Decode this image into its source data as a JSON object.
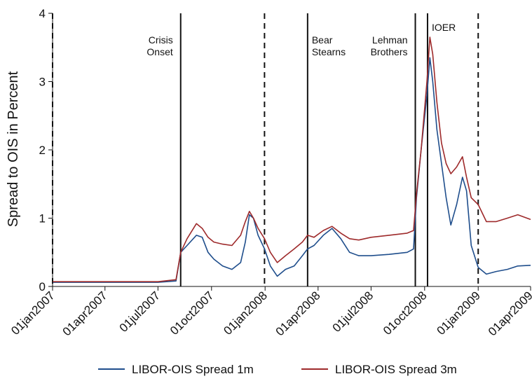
{
  "chart_data": {
    "type": "line",
    "title": "",
    "xlabel": "",
    "ylabel": "Spread to OIS in Percent",
    "ylim": [
      0,
      4
    ],
    "xlim": [
      "2007-01-01",
      "2009-04-01"
    ],
    "y_ticks": [
      "0",
      "1",
      "2",
      "3",
      "4"
    ],
    "x_ticks": [
      {
        "date": "2007-01-01",
        "label": "01jan2007"
      },
      {
        "date": "2007-04-01",
        "label": "01apr2007"
      },
      {
        "date": "2007-07-01",
        "label": "01jul2007"
      },
      {
        "date": "2007-10-01",
        "label": "01oct2007"
      },
      {
        "date": "2008-01-01",
        "label": "01jan2008"
      },
      {
        "date": "2008-04-01",
        "label": "01apr2008"
      },
      {
        "date": "2008-07-01",
        "label": "01jul2008"
      },
      {
        "date": "2008-10-01",
        "label": "01oct2008"
      },
      {
        "date": "2009-01-01",
        "label": "01jan2009"
      },
      {
        "date": "2009-04-01",
        "label": "01apr2009"
      }
    ],
    "grid": false,
    "legend_position": "bottom",
    "event_lines": [
      {
        "date": "2007-01-01",
        "style": "dashed",
        "label": []
      },
      {
        "date": "2007-08-09",
        "style": "solid",
        "label": [
          "Crisis",
          "Onset"
        ],
        "align": "right"
      },
      {
        "date": "2007-12-31",
        "style": "dashed",
        "label": []
      },
      {
        "date": "2008-03-14",
        "style": "solid",
        "label": [
          "Bear",
          "Stearns"
        ],
        "align": "left"
      },
      {
        "date": "2008-09-15",
        "style": "solid",
        "label": [
          "Lehman",
          "Brothers"
        ],
        "align": "right"
      },
      {
        "date": "2008-10-06",
        "style": "solid",
        "label": [
          "IOER"
        ],
        "align": "left"
      },
      {
        "date": "2009-01-01",
        "style": "dashed",
        "label": []
      }
    ],
    "series": [
      {
        "name": "LIBOR-OIS Spread 1m",
        "color": "#1f4e8c",
        "points": [
          [
            "2007-01-01",
            0.06
          ],
          [
            "2007-02-01",
            0.06
          ],
          [
            "2007-03-01",
            0.06
          ],
          [
            "2007-04-01",
            0.06
          ],
          [
            "2007-05-01",
            0.06
          ],
          [
            "2007-06-01",
            0.06
          ],
          [
            "2007-07-01",
            0.06
          ],
          [
            "2007-08-01",
            0.08
          ],
          [
            "2007-08-09",
            0.5
          ],
          [
            "2007-08-20",
            0.6
          ],
          [
            "2007-09-05",
            0.75
          ],
          [
            "2007-09-15",
            0.72
          ],
          [
            "2007-09-25",
            0.5
          ],
          [
            "2007-10-05",
            0.4
          ],
          [
            "2007-10-20",
            0.3
          ],
          [
            "2007-11-05",
            0.25
          ],
          [
            "2007-11-20",
            0.35
          ],
          [
            "2007-11-28",
            0.65
          ],
          [
            "2007-12-05",
            1.05
          ],
          [
            "2007-12-12",
            1.0
          ],
          [
            "2007-12-20",
            0.75
          ],
          [
            "2007-12-31",
            0.55
          ],
          [
            "2008-01-10",
            0.3
          ],
          [
            "2008-01-22",
            0.15
          ],
          [
            "2008-02-05",
            0.25
          ],
          [
            "2008-02-20",
            0.3
          ],
          [
            "2008-03-05",
            0.45
          ],
          [
            "2008-03-14",
            0.55
          ],
          [
            "2008-03-25",
            0.6
          ],
          [
            "2008-04-10",
            0.75
          ],
          [
            "2008-04-25",
            0.85
          ],
          [
            "2008-05-10",
            0.7
          ],
          [
            "2008-05-25",
            0.5
          ],
          [
            "2008-06-10",
            0.45
          ],
          [
            "2008-07-01",
            0.45
          ],
          [
            "2008-08-01",
            0.47
          ],
          [
            "2008-09-01",
            0.5
          ],
          [
            "2008-09-12",
            0.55
          ],
          [
            "2008-09-17",
            1.3
          ],
          [
            "2008-09-25",
            2.0
          ],
          [
            "2008-10-05",
            2.8
          ],
          [
            "2008-10-10",
            3.35
          ],
          [
            "2008-10-15",
            3.0
          ],
          [
            "2008-10-22",
            2.3
          ],
          [
            "2008-10-30",
            1.8
          ],
          [
            "2008-11-07",
            1.3
          ],
          [
            "2008-11-15",
            0.9
          ],
          [
            "2008-11-25",
            1.2
          ],
          [
            "2008-12-05",
            1.6
          ],
          [
            "2008-12-12",
            1.4
          ],
          [
            "2008-12-20",
            0.6
          ],
          [
            "2009-01-01",
            0.28
          ],
          [
            "2009-01-15",
            0.18
          ],
          [
            "2009-02-01",
            0.22
          ],
          [
            "2009-02-20",
            0.25
          ],
          [
            "2009-03-10",
            0.3
          ],
          [
            "2009-04-01",
            0.31
          ]
        ]
      },
      {
        "name": "LIBOR-OIS Spread 3m",
        "color": "#9e2a2b",
        "points": [
          [
            "2007-01-01",
            0.07
          ],
          [
            "2007-02-01",
            0.07
          ],
          [
            "2007-03-01",
            0.07
          ],
          [
            "2007-04-01",
            0.07
          ],
          [
            "2007-05-01",
            0.07
          ],
          [
            "2007-06-01",
            0.07
          ],
          [
            "2007-07-01",
            0.07
          ],
          [
            "2007-08-01",
            0.1
          ],
          [
            "2007-08-09",
            0.5
          ],
          [
            "2007-08-20",
            0.7
          ],
          [
            "2007-09-05",
            0.92
          ],
          [
            "2007-09-15",
            0.85
          ],
          [
            "2007-09-25",
            0.72
          ],
          [
            "2007-10-05",
            0.65
          ],
          [
            "2007-10-20",
            0.62
          ],
          [
            "2007-11-05",
            0.6
          ],
          [
            "2007-11-20",
            0.75
          ],
          [
            "2007-11-28",
            0.95
          ],
          [
            "2007-12-05",
            1.1
          ],
          [
            "2007-12-12",
            1.0
          ],
          [
            "2007-12-20",
            0.85
          ],
          [
            "2007-12-31",
            0.7
          ],
          [
            "2008-01-10",
            0.5
          ],
          [
            "2008-01-22",
            0.35
          ],
          [
            "2008-02-05",
            0.45
          ],
          [
            "2008-02-20",
            0.55
          ],
          [
            "2008-03-05",
            0.65
          ],
          [
            "2008-03-14",
            0.75
          ],
          [
            "2008-03-25",
            0.72
          ],
          [
            "2008-04-10",
            0.82
          ],
          [
            "2008-04-25",
            0.88
          ],
          [
            "2008-05-10",
            0.78
          ],
          [
            "2008-05-25",
            0.7
          ],
          [
            "2008-06-10",
            0.68
          ],
          [
            "2008-07-01",
            0.72
          ],
          [
            "2008-08-01",
            0.75
          ],
          [
            "2008-09-01",
            0.78
          ],
          [
            "2008-09-12",
            0.82
          ],
          [
            "2008-09-17",
            1.35
          ],
          [
            "2008-09-25",
            2.0
          ],
          [
            "2008-10-05",
            3.0
          ],
          [
            "2008-10-10",
            3.65
          ],
          [
            "2008-10-15",
            3.4
          ],
          [
            "2008-10-22",
            2.7
          ],
          [
            "2008-10-30",
            2.1
          ],
          [
            "2008-11-07",
            1.8
          ],
          [
            "2008-11-15",
            1.65
          ],
          [
            "2008-11-25",
            1.75
          ],
          [
            "2008-12-05",
            1.9
          ],
          [
            "2008-12-12",
            1.6
          ],
          [
            "2008-12-20",
            1.3
          ],
          [
            "2009-01-01",
            1.2
          ],
          [
            "2009-01-15",
            0.95
          ],
          [
            "2009-02-01",
            0.95
          ],
          [
            "2009-02-20",
            1.0
          ],
          [
            "2009-03-10",
            1.05
          ],
          [
            "2009-04-01",
            0.98
          ]
        ]
      }
    ]
  }
}
